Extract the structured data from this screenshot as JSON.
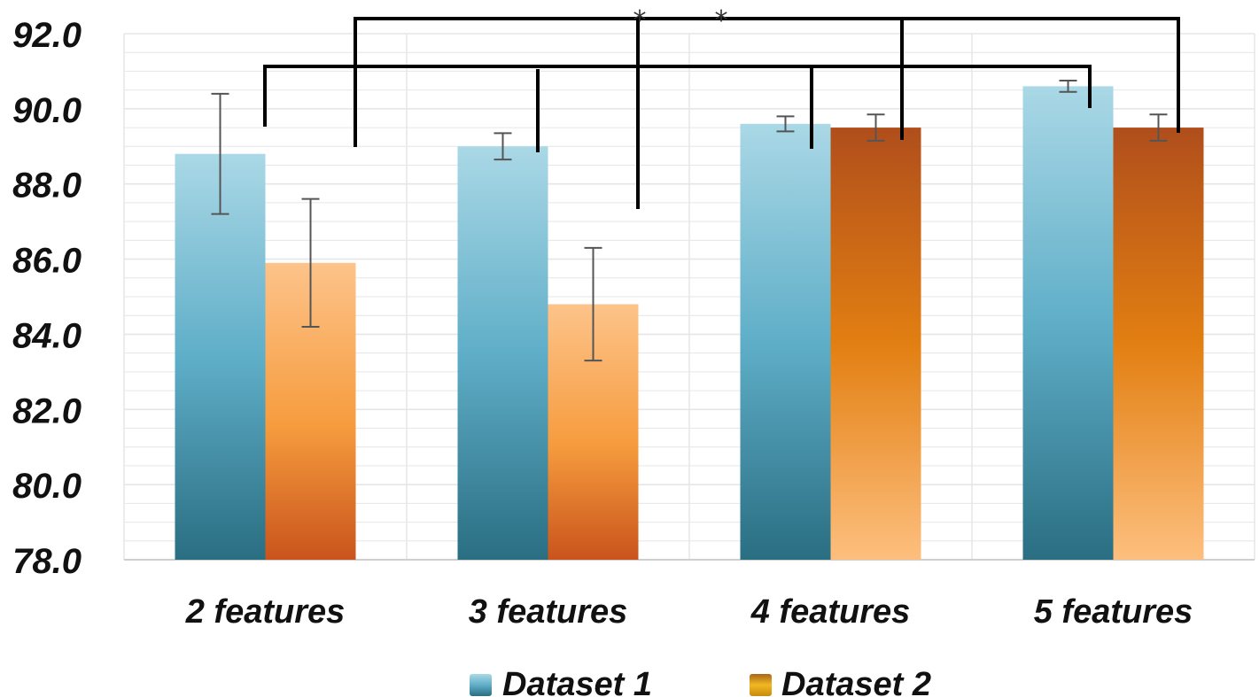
{
  "chart_data": {
    "type": "bar",
    "title": "",
    "xlabel": "",
    "ylabel": "",
    "ylim": [
      78,
      92
    ],
    "yticks": [
      "78.0",
      "80.0",
      "82.0",
      "84.0",
      "86.0",
      "88.0",
      "90.0",
      "92.0"
    ],
    "categories": [
      "2 features",
      "3 features",
      "4 features",
      "5 features"
    ],
    "series": [
      {
        "name": "Dataset 1",
        "values": [
          88.8,
          89.0,
          89.6,
          90.6
        ],
        "error": [
          1.6,
          0.35,
          0.2,
          0.15
        ],
        "color": "#5aaec8"
      },
      {
        "name": "Dataset 2",
        "values": [
          85.9,
          84.8,
          89.5,
          89.5
        ],
        "error": [
          1.7,
          1.5,
          0.35,
          0.35
        ],
        "color": "#e8882a"
      }
    ],
    "grid": true,
    "legend_position": "bottom",
    "significance_marks": [
      "*",
      "*"
    ]
  }
}
